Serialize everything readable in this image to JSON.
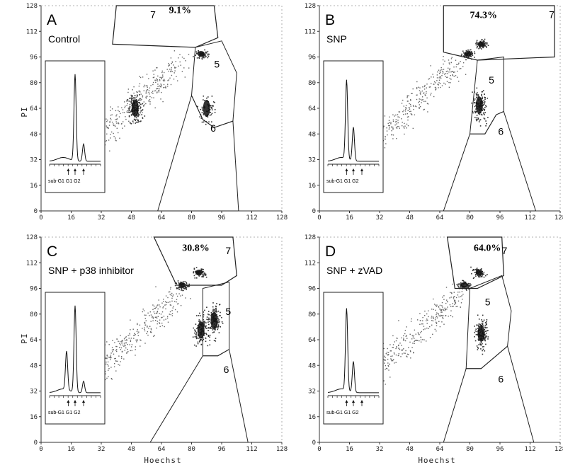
{
  "figure": {
    "ylabel": "PI",
    "xlabel": "Hoechst",
    "ticks": [
      "0",
      "16",
      "32",
      "48",
      "64",
      "80",
      "96",
      "112",
      "128"
    ]
  },
  "panels": [
    {
      "letter": "A",
      "condition": "Control",
      "percent": "9.1%",
      "regions": [
        "7",
        "5",
        "6"
      ],
      "inset_ticks": "sub-G1 G1 G2"
    },
    {
      "letter": "B",
      "condition": "SNP",
      "percent": "74.3%",
      "regions": [
        "7",
        "5",
        "6"
      ],
      "inset_ticks": "sub-G1 G1 G2"
    },
    {
      "letter": "C",
      "condition": "SNP + p38 inhibitor",
      "percent": "30.8%",
      "regions": [
        "7",
        "5",
        "6"
      ],
      "inset_ticks": "sub-G1 G1 G2"
    },
    {
      "letter": "D",
      "condition": "SNP + zVAD",
      "percent": "64.0%",
      "regions": [
        "7",
        "5",
        "6"
      ],
      "inset_ticks": "sub-G1 G1 G2"
    }
  ],
  "chart_data": [
    {
      "type": "scatter",
      "panel": "A",
      "title": "Control",
      "xlabel": "",
      "ylabel": "PI",
      "xlim": [
        0,
        128
      ],
      "ylim": [
        0,
        128
      ],
      "gates": [
        {
          "region": "7",
          "percent": 9.1
        },
        {
          "region": "5"
        },
        {
          "region": "6"
        }
      ],
      "clusters": [
        {
          "x": 88,
          "y": 64
        },
        {
          "x": 85,
          "y": 98
        },
        {
          "x": 50,
          "y": 64
        }
      ],
      "inset": {
        "type": "line",
        "peaks": [
          {
            "label": "G1",
            "x": 17,
            "height": 0.9
          },
          {
            "label": "G2",
            "x": 22,
            "height": 0.18
          }
        ]
      }
    },
    {
      "type": "scatter",
      "panel": "B",
      "title": "SNP",
      "xlabel": "",
      "ylabel": "",
      "xlim": [
        0,
        128
      ],
      "ylim": [
        0,
        128
      ],
      "gates": [
        {
          "region": "7",
          "percent": 74.3
        },
        {
          "region": "5"
        },
        {
          "region": "6"
        }
      ],
      "clusters": [
        {
          "x": 79,
          "y": 98
        },
        {
          "x": 86,
          "y": 104
        },
        {
          "x": 85,
          "y": 66
        }
      ],
      "inset": {
        "type": "line",
        "peaks": [
          {
            "label": "sub-G1",
            "x": 13,
            "height": 0.82
          },
          {
            "label": "G1",
            "x": 17,
            "height": 0.35
          }
        ]
      }
    },
    {
      "type": "scatter",
      "panel": "C",
      "title": "SNP + p38 inhibitor",
      "xlabel": "Hoechst",
      "ylabel": "PI",
      "xlim": [
        0,
        128
      ],
      "ylim": [
        0,
        128
      ],
      "gates": [
        {
          "region": "7",
          "percent": 30.8
        },
        {
          "region": "5"
        },
        {
          "region": "6"
        }
      ],
      "clusters": [
        {
          "x": 75,
          "y": 98
        },
        {
          "x": 84,
          "y": 106
        },
        {
          "x": 85,
          "y": 70
        },
        {
          "x": 92,
          "y": 76
        }
      ],
      "inset": {
        "type": "line",
        "peaks": [
          {
            "label": "sub-G1",
            "x": 12,
            "height": 0.4
          },
          {
            "label": "G1",
            "x": 17,
            "height": 0.9
          },
          {
            "label": "G2",
            "x": 22,
            "height": 0.12
          }
        ]
      }
    },
    {
      "type": "scatter",
      "panel": "D",
      "title": "SNP + zVAD",
      "xlabel": "Hoechst",
      "ylabel": "",
      "xlim": [
        0,
        128
      ],
      "ylim": [
        0,
        128
      ],
      "gates": [
        {
          "region": "7",
          "percent": 64.0
        },
        {
          "region": "5"
        },
        {
          "region": "6"
        }
      ],
      "clusters": [
        {
          "x": 77,
          "y": 98
        },
        {
          "x": 85,
          "y": 106
        },
        {
          "x": 86,
          "y": 68
        }
      ],
      "inset": {
        "type": "line",
        "peaks": [
          {
            "label": "sub-G1",
            "x": 13,
            "height": 0.85
          },
          {
            "label": "G1",
            "x": 17,
            "height": 0.32
          }
        ]
      }
    }
  ]
}
